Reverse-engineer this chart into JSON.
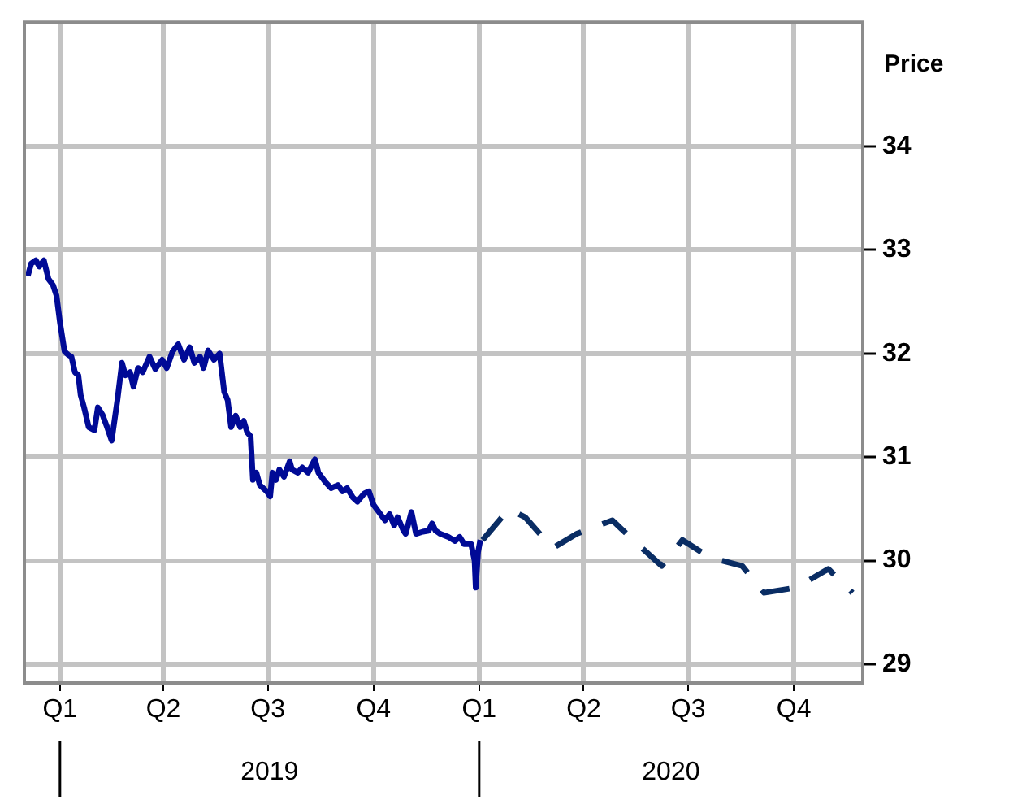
{
  "chart_data": {
    "type": "line",
    "ylabel": "Price",
    "xlim": [
      "2018-12-01",
      "2020-11-30"
    ],
    "ylim": [
      28.82,
      35.2
    ],
    "xticks": [
      {
        "value": "2019-01-01",
        "label": "Q1"
      },
      {
        "value": "2019-04-01",
        "label": "Q2"
      },
      {
        "value": "2019-07-01",
        "label": "Q3"
      },
      {
        "value": "2019-10-01",
        "label": "Q4"
      },
      {
        "value": "2020-01-01",
        "label": "Q1"
      },
      {
        "value": "2020-04-01",
        "label": "Q2"
      },
      {
        "value": "2020-07-01",
        "label": "Q3"
      },
      {
        "value": "2020-10-01",
        "label": "Q4"
      }
    ],
    "yticks": [
      29,
      30,
      31,
      32,
      33,
      34
    ],
    "annotations": [
      "2019",
      "2020"
    ],
    "grid": true,
    "legend": false,
    "marker": "none",
    "series": [
      {
        "color": "#000a96",
        "line_style": "solid",
        "x": [
          "2018-12-04",
          "2018-12-07",
          "2018-12-11",
          "2018-12-14",
          "2018-12-18",
          "2018-12-22",
          "2018-12-26",
          "2018-12-29",
          "2019-01-01",
          "2019-01-05",
          "2019-01-08",
          "2019-01-11",
          "2019-01-14",
          "2019-01-17",
          "2019-01-19",
          "2019-01-22",
          "2019-01-26",
          "2019-01-31",
          "2019-02-03",
          "2019-02-07",
          "2019-02-11",
          "2019-02-15",
          "2019-02-20",
          "2019-02-24",
          "2019-02-27",
          "2019-03-03",
          "2019-03-06",
          "2019-03-10",
          "2019-03-14",
          "2019-03-20",
          "2019-03-25",
          "2019-03-31",
          "2019-04-04",
          "2019-04-09",
          "2019-04-14",
          "2019-04-19",
          "2019-04-24",
          "2019-04-28",
          "2019-05-03",
          "2019-05-06",
          "2019-05-10",
          "2019-05-15",
          "2019-05-20",
          "2019-05-24",
          "2019-05-27",
          "2019-05-30",
          "2019-06-03",
          "2019-06-07",
          "2019-06-10",
          "2019-06-13",
          "2019-06-16",
          "2019-06-18",
          "2019-06-21",
          "2019-06-24",
          "2019-06-30",
          "2019-07-03",
          "2019-07-05",
          "2019-07-08",
          "2019-07-11",
          "2019-07-15",
          "2019-07-20",
          "2019-07-22",
          "2019-07-27",
          "2019-07-31",
          "2019-08-05",
          "2019-08-11",
          "2019-08-14",
          "2019-08-20",
          "2019-08-25",
          "2019-08-31",
          "2019-09-04",
          "2019-09-08",
          "2019-09-13",
          "2019-09-17",
          "2019-09-23",
          "2019-09-27",
          "2019-10-01",
          "2019-10-05",
          "2019-10-11",
          "2019-10-15",
          "2019-10-19",
          "2019-10-22",
          "2019-10-27",
          "2019-10-29",
          "2019-11-03",
          "2019-11-07",
          "2019-11-13",
          "2019-11-18",
          "2019-11-21",
          "2019-11-24",
          "2019-11-28",
          "2019-12-05",
          "2019-12-11",
          "2019-12-15",
          "2019-12-19",
          "2019-12-25",
          "2019-12-28",
          "2019-12-29",
          "2019-12-31",
          "2020-01-02"
        ],
        "values": [
          32.75,
          32.87,
          32.9,
          32.84,
          32.9,
          32.72,
          32.66,
          32.56,
          32.3,
          32.02,
          31.99,
          31.97,
          31.82,
          31.79,
          31.6,
          31.48,
          31.29,
          31.26,
          31.48,
          31.41,
          31.29,
          31.16,
          31.55,
          31.91,
          31.79,
          31.82,
          31.68,
          31.86,
          31.82,
          31.97,
          31.85,
          31.94,
          31.86,
          32.02,
          32.09,
          31.94,
          32.06,
          31.91,
          31.97,
          31.86,
          32.03,
          31.94,
          32.0,
          31.63,
          31.55,
          31.29,
          31.4,
          31.29,
          31.35,
          31.24,
          31.2,
          30.78,
          30.85,
          30.73,
          30.67,
          30.62,
          30.85,
          30.78,
          30.88,
          30.81,
          30.96,
          30.88,
          30.85,
          30.9,
          30.85,
          30.98,
          30.85,
          30.76,
          30.7,
          30.73,
          30.67,
          30.7,
          30.61,
          30.57,
          30.65,
          30.67,
          30.54,
          30.48,
          30.39,
          30.45,
          30.34,
          30.42,
          30.29,
          30.26,
          30.47,
          30.26,
          30.28,
          30.29,
          30.36,
          30.29,
          30.26,
          30.23,
          30.19,
          30.23,
          30.16,
          30.16,
          30.0,
          29.74,
          30.08,
          30.2
        ]
      },
      {
        "color": "#0a2d64",
        "line_style": "dashed",
        "x": [
          "2020-01-04",
          "2020-01-27",
          "2020-02-10",
          "2020-03-05",
          "2020-03-26",
          "2020-04-26",
          "2020-05-15",
          "2020-06-08",
          "2020-06-26",
          "2020-07-20",
          "2020-08-17",
          "2020-09-05",
          "2020-10-03",
          "2020-10-31",
          "2020-11-21"
        ],
        "values": [
          30.2,
          30.5,
          30.42,
          30.12,
          30.26,
          30.39,
          30.19,
          29.95,
          30.2,
          30.03,
          29.95,
          29.69,
          29.74,
          29.92,
          29.69
        ]
      }
    ]
  }
}
